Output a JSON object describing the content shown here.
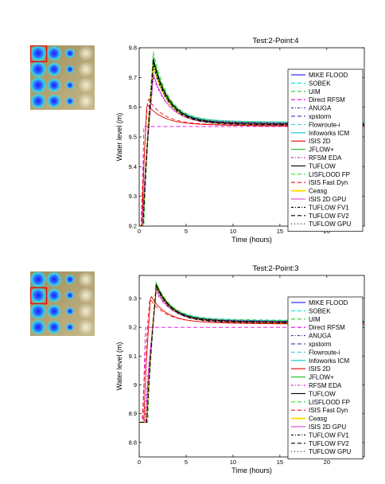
{
  "chart_data": [
    {
      "type": "line",
      "title": "Test:2-Point:4",
      "xlabel": "Time (hours)",
      "ylabel": "Water level (m)",
      "xlim": [
        0,
        24
      ],
      "ylim": [
        9.2,
        9.8
      ],
      "xticks": [
        0,
        5,
        10,
        15,
        20
      ],
      "yticks": [
        9.2,
        9.3,
        9.4,
        9.5,
        9.6,
        9.7,
        9.8
      ],
      "ytick_labels": [
        "9.2",
        "9.3",
        "9.4",
        "9.5",
        "9.6",
        "9.7",
        "9.8"
      ],
      "grid": false,
      "legend_position": "right",
      "base_level": 9.2,
      "peak_time": 1.5,
      "final_level": 9.54,
      "series": [
        {
          "name": "MIKE FLOOD",
          "color": "#0000ff",
          "dash": "",
          "peak": 9.745,
          "delta": 0.0,
          "onset": 0.4
        },
        {
          "name": "SOBEK",
          "color": "#00e5e5",
          "dash": "5 3",
          "peak": 9.73,
          "delta": 0.005,
          "onset": 0.45
        },
        {
          "name": "UIM",
          "color": "#33cc33",
          "dash": "5 3",
          "peak": 9.775,
          "delta": 0.003,
          "onset": 0.4
        },
        {
          "name": "Direct RFSM",
          "color": "#e600e6",
          "dash": "5 3",
          "flat": 9.535,
          "onset": 0.25
        },
        {
          "name": "ANUGA",
          "color": "#3333cc",
          "dash": "3 2 1 2",
          "peak": 9.75,
          "delta": 0.006,
          "onset": 0.4
        },
        {
          "name": "xpstorm",
          "color": "#2222bb",
          "dash": "5 3",
          "peak": 9.74,
          "delta": -0.004,
          "onset": 0.5
        },
        {
          "name": "Flowroute-i",
          "color": "#44ccee",
          "dash": "5 3",
          "peak": 9.72,
          "delta": 0.008,
          "onset": 0.45
        },
        {
          "name": "Infoworks ICM",
          "color": "#00cccc",
          "dash": "",
          "peak": 9.735,
          "delta": 0.004,
          "onset": 0.45
        },
        {
          "name": "ISIS 2D",
          "color": "#dd0000",
          "dash": "",
          "peak": 9.6,
          "delta": -0.006,
          "onset": 0.3,
          "peak_time": 0.8
        },
        {
          "name": "JFLOW+",
          "color": "#22bb22",
          "dash": "",
          "peak": 9.74,
          "delta": 0.002,
          "onset": 0.4
        },
        {
          "name": "RFSM EDA",
          "color": "#dd00dd",
          "dash": "3 2 1 2",
          "peak": 9.69,
          "delta": 0.004,
          "onset": 0.35
        },
        {
          "name": "TUFLOW",
          "color": "#000000",
          "dash": "",
          "peak": 9.755,
          "delta": 0.001,
          "onset": 0.4
        },
        {
          "name": "LISFLOOD FP",
          "color": "#33dd33",
          "dash": "5 3",
          "peak": 9.76,
          "delta": 0.007,
          "onset": 0.5
        },
        {
          "name": "ISIS Fast Dyn",
          "color": "#ee1111",
          "dash": "5 3",
          "peak": 9.62,
          "delta": -0.005,
          "onset": 0.2,
          "peak_time": 0.9
        },
        {
          "name": "Ceasg",
          "color": "#ffdd00",
          "dash": "",
          "peak": 9.73,
          "delta": -0.002,
          "onset": 0.4
        },
        {
          "name": "ISIS 2D GPU",
          "color": "#cc33cc",
          "dash": "",
          "peak": 9.7,
          "delta": -0.001,
          "onset": 0.35
        },
        {
          "name": "TUFLOW FV1",
          "color": "#000000",
          "dash": "3 2 1 2",
          "peak": 9.73,
          "delta": -0.003,
          "onset": 0.45
        },
        {
          "name": "TUFLOW FV2",
          "color": "#000000",
          "dash": "5 3",
          "peak": 9.745,
          "delta": -0.002,
          "onset": 0.45
        },
        {
          "name": "TUFLOW GPU",
          "color": "#000000",
          "dash": "1 3",
          "peak": 9.74,
          "delta": 0.0,
          "onset": 0.4
        }
      ]
    },
    {
      "type": "line",
      "title": "Test:2-Point:3",
      "xlabel": "Time (hours)",
      "ylabel": "Water level (m)",
      "xlim": [
        0,
        24
      ],
      "ylim": [
        8.75,
        9.38
      ],
      "xticks": [
        0,
        5,
        10,
        15,
        20
      ],
      "yticks": [
        8.8,
        8.9,
        9.0,
        9.1,
        9.2,
        9.3
      ],
      "ytick_labels": [
        "8.8",
        "8.9",
        "9",
        "9.1",
        "9.2",
        "9.3"
      ],
      "grid": false,
      "legend_position": "right",
      "base_level": 8.87,
      "peak_time": 1.8,
      "final_level": 9.215,
      "series": [
        {
          "name": "MIKE FLOOD",
          "color": "#0000ff",
          "dash": "",
          "peak": 9.335,
          "delta": 0.0,
          "onset": 0.8
        },
        {
          "name": "SOBEK",
          "color": "#00e5e5",
          "dash": "5 3",
          "peak": 9.325,
          "delta": 0.004,
          "onset": 0.85
        },
        {
          "name": "UIM",
          "color": "#33cc33",
          "dash": "5 3",
          "peak": 9.34,
          "delta": 0.003,
          "onset": 0.8
        },
        {
          "name": "Direct RFSM",
          "color": "#e600e6",
          "dash": "5 3",
          "flat": 9.2,
          "onset": 0.4
        },
        {
          "name": "ANUGA",
          "color": "#3333cc",
          "dash": "3 2 1 2",
          "peak": 9.33,
          "delta": 0.005,
          "onset": 0.8
        },
        {
          "name": "xpstorm",
          "color": "#2222bb",
          "dash": "5 3",
          "peak": 9.33,
          "delta": -0.004,
          "onset": 0.9
        },
        {
          "name": "Flowroute-i",
          "color": "#44ccee",
          "dash": "5 3",
          "peak": 9.32,
          "delta": 0.007,
          "onset": 0.85
        },
        {
          "name": "Infoworks ICM",
          "color": "#00cccc",
          "dash": "",
          "peak": 9.33,
          "delta": 0.004,
          "onset": 0.85
        },
        {
          "name": "ISIS 2D",
          "color": "#dd0000",
          "dash": "",
          "peak": 9.3,
          "delta": -0.006,
          "onset": 0.5,
          "peak_time": 1.2
        },
        {
          "name": "JFLOW+",
          "color": "#22bb22",
          "dash": "",
          "peak": 9.335,
          "delta": 0.002,
          "onset": 0.8
        },
        {
          "name": "RFSM EDA",
          "color": "#dd00dd",
          "dash": "3 2 1 2",
          "peak": 9.31,
          "delta": 0.003,
          "onset": 0.6
        },
        {
          "name": "TUFLOW",
          "color": "#000000",
          "dash": "",
          "peak": 9.34,
          "delta": 0.001,
          "onset": 0.8
        },
        {
          "name": "LISFLOOD FP",
          "color": "#33dd33",
          "dash": "5 3",
          "peak": 9.345,
          "delta": 0.006,
          "onset": 0.9
        },
        {
          "name": "ISIS Fast Dyn",
          "color": "#ee1111",
          "dash": "5 3",
          "peak": 9.29,
          "delta": -0.005,
          "onset": 0.35,
          "peak_time": 1.1
        },
        {
          "name": "Ceasg",
          "color": "#ffdd00",
          "dash": "",
          "peak": 9.33,
          "delta": -0.002,
          "onset": 0.8
        },
        {
          "name": "ISIS 2D GPU",
          "color": "#cc33cc",
          "dash": "",
          "peak": 9.32,
          "delta": -0.001,
          "onset": 0.7
        },
        {
          "name": "TUFLOW FV1",
          "color": "#000000",
          "dash": "3 2 1 2",
          "peak": 9.33,
          "delta": -0.003,
          "onset": 0.85
        },
        {
          "name": "TUFLOW FV2",
          "color": "#000000",
          "dash": "5 3",
          "peak": 9.335,
          "delta": -0.002,
          "onset": 0.85
        },
        {
          "name": "TUFLOW GPU",
          "color": "#000000",
          "dash": "1 3",
          "peak": 9.33,
          "delta": 0.0,
          "onset": 0.8
        }
      ]
    }
  ],
  "thumbnails": [
    {
      "highlight_row": 0,
      "highlight_col": 0
    },
    {
      "highlight_row": 1,
      "highlight_col": 0
    }
  ]
}
